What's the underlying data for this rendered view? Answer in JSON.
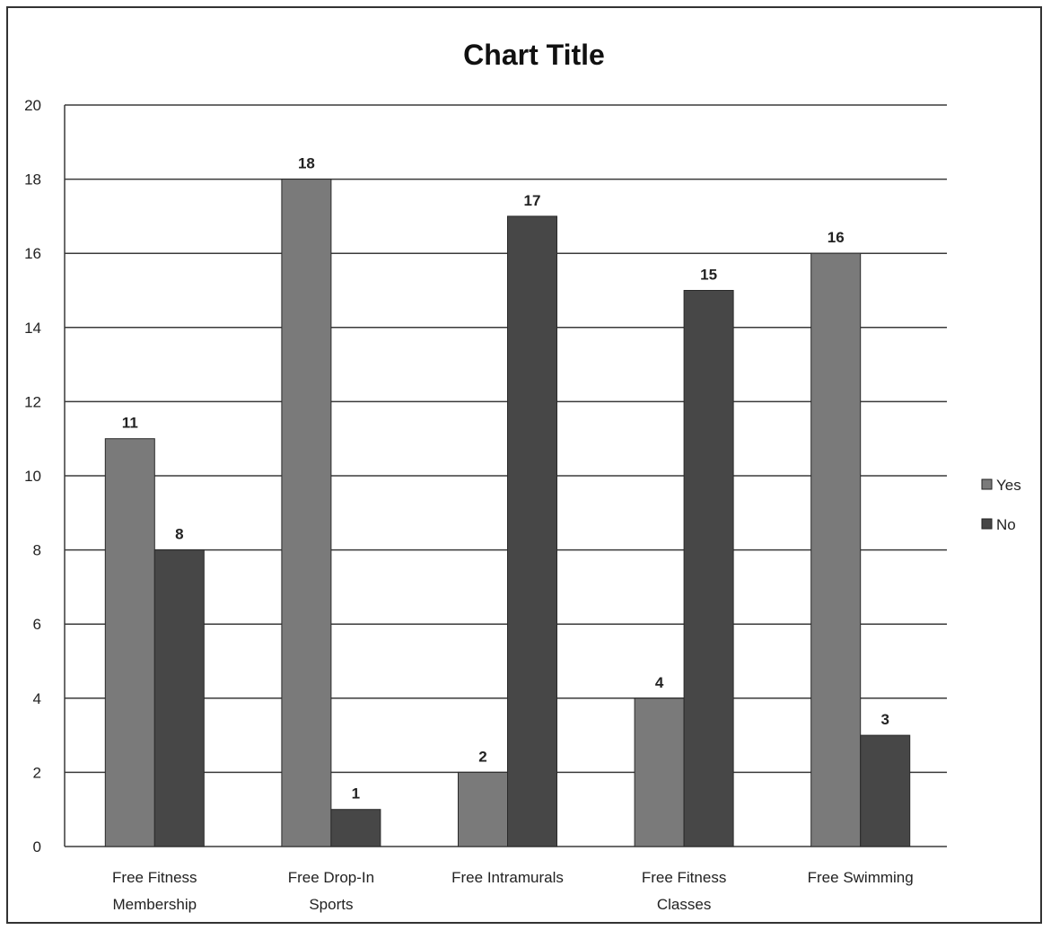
{
  "chart_data": {
    "type": "bar",
    "title": "Chart Title",
    "xlabel": "",
    "ylabel": "",
    "categories": [
      [
        "Free Fitness",
        "Membership"
      ],
      [
        "Free Drop-In",
        "Sports"
      ],
      [
        "Free Intramurals"
      ],
      [
        "Free Fitness",
        "Classes"
      ],
      [
        "Free Swimming"
      ]
    ],
    "series": [
      {
        "name": "Yes",
        "values": [
          11,
          18,
          2,
          4,
          16
        ],
        "color": "#7a7a7a"
      },
      {
        "name": "No",
        "values": [
          8,
          1,
          17,
          15,
          3
        ],
        "color": "#474747"
      }
    ],
    "ylim": [
      0,
      20
    ],
    "yticks": [
      0,
      2,
      4,
      6,
      8,
      10,
      12,
      14,
      16,
      18,
      20
    ],
    "grid": true,
    "legend_position": "right",
    "data_labels": true
  }
}
